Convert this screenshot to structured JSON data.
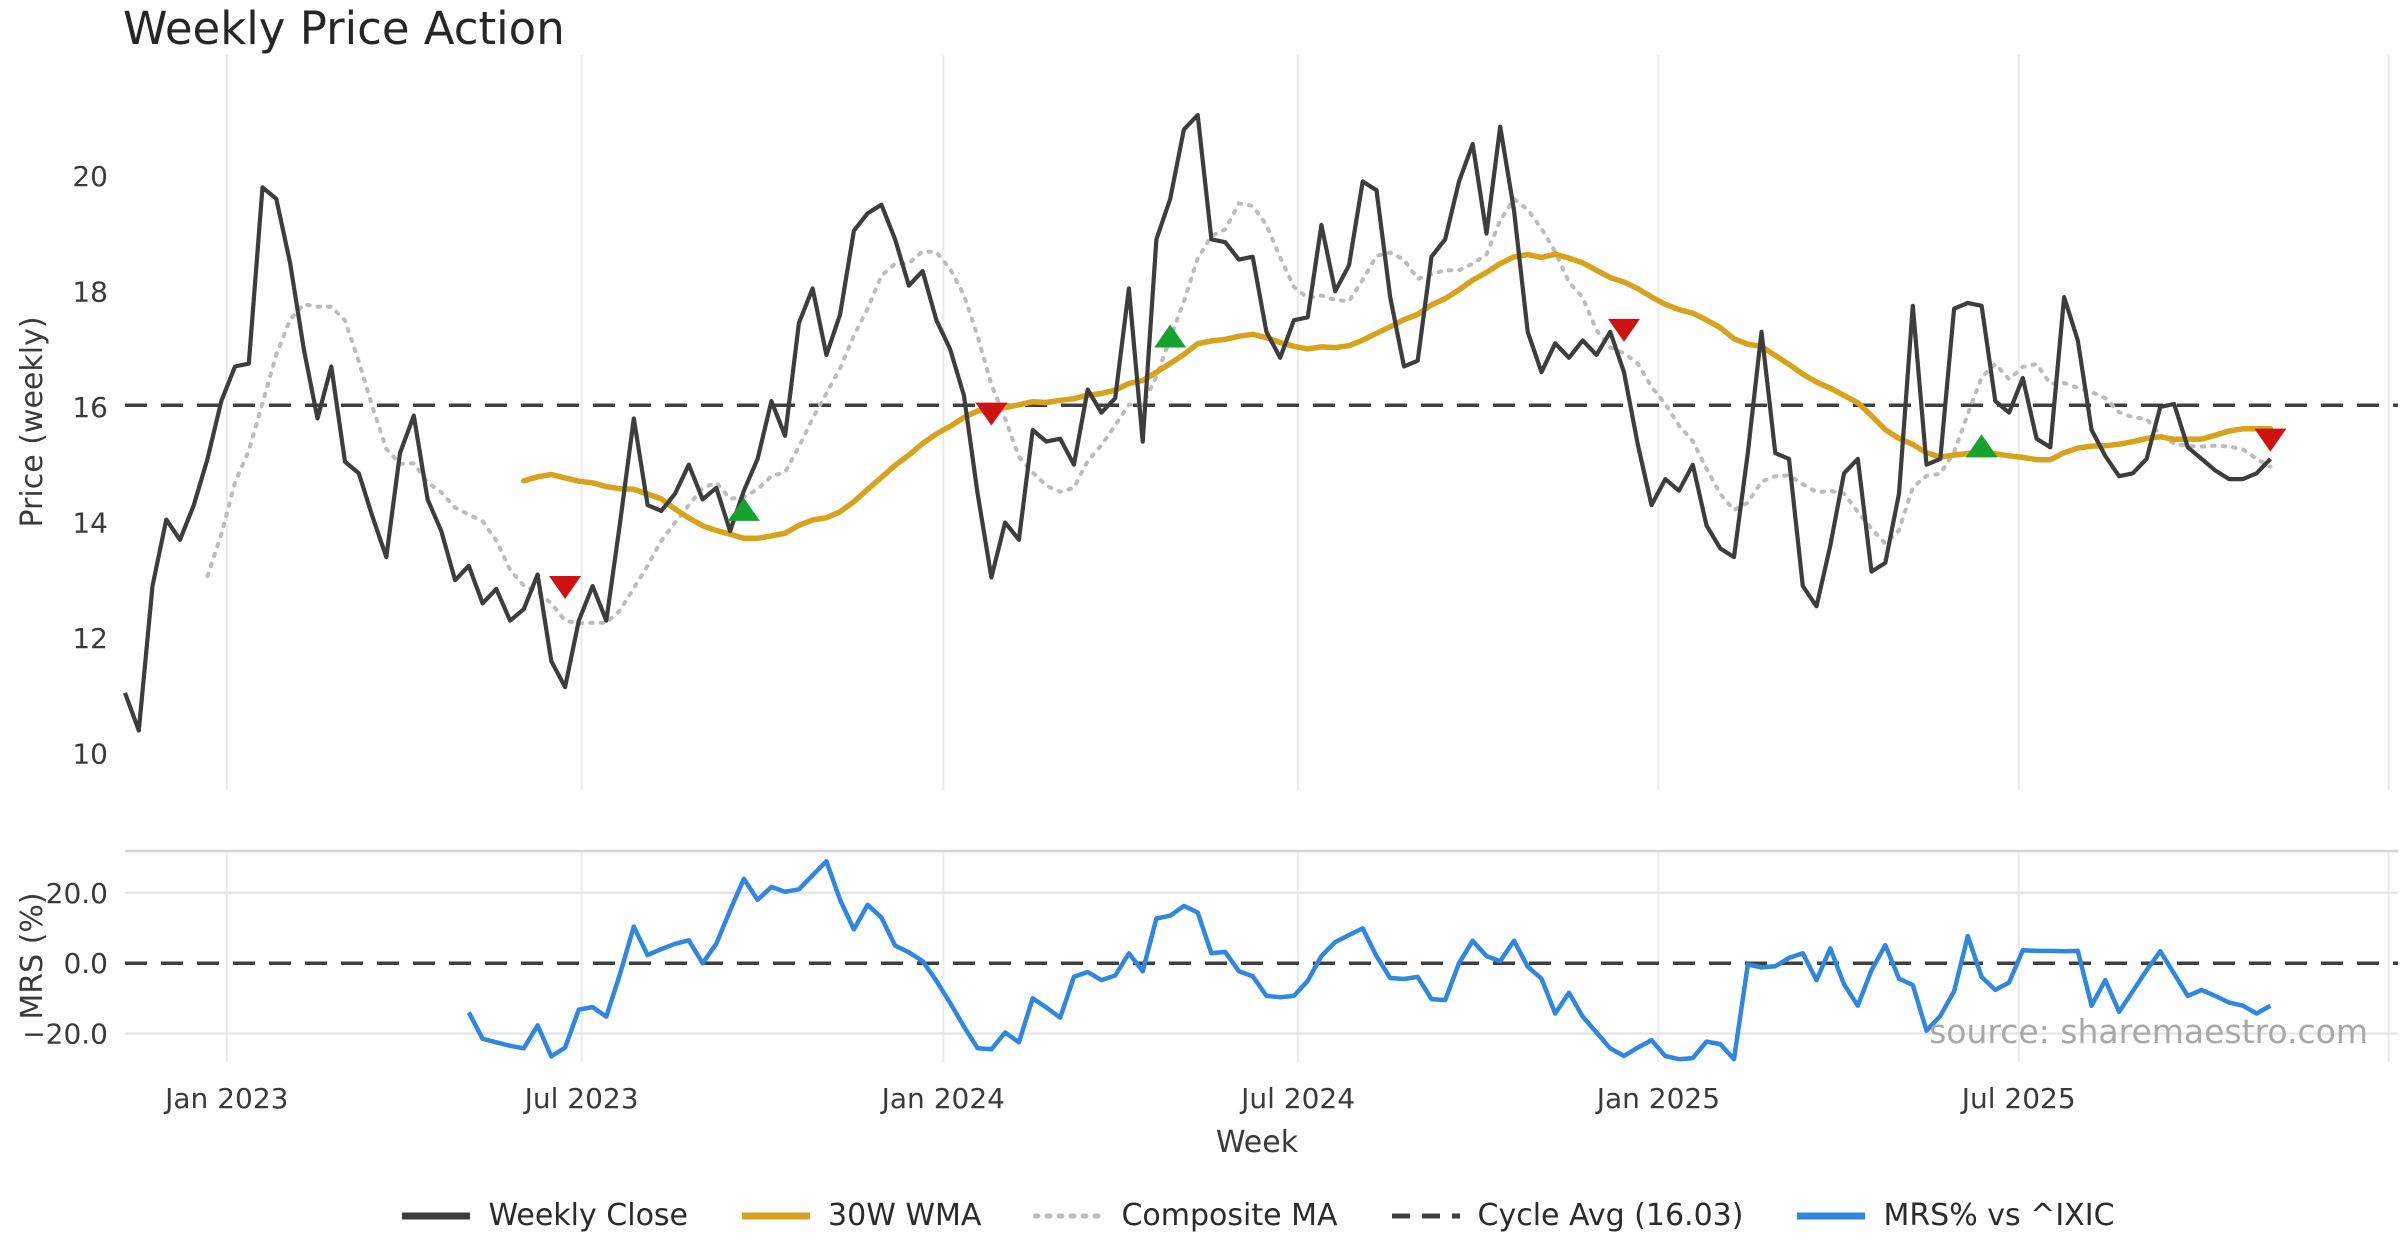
{
  "title": "Weekly Price Action",
  "source_note": "source: sharemaestro.com",
  "colors": {
    "close": "#3d3d3d",
    "wma": "#D7A31C",
    "composite": "#bcbcbc",
    "cycle": "#3f3f3f",
    "mrs": "#2F87E0",
    "buy": "#16A22C",
    "sell": "#CE1212",
    "grid": "#ebebef",
    "grid_strong": "#e2e2e6",
    "spine": "#d4d4d8"
  },
  "x_axis": {
    "label": "Week",
    "weeks_total": 164.7,
    "ticks": [
      {
        "week": 7.4,
        "label": "Jan 2023"
      },
      {
        "week": 33.2,
        "label": "Jul 2023"
      },
      {
        "week": 59.5,
        "label": "Jan 2024"
      },
      {
        "week": 85.3,
        "label": "Jul 2024"
      },
      {
        "week": 111.5,
        "label": "Jan 2025"
      },
      {
        "week": 137.7,
        "label": "Jul 2025"
      },
      {
        "week": 164.6,
        "label": ""
      }
    ]
  },
  "legend": [
    {
      "label": "Weekly Close",
      "style": "solid",
      "color": "#3d3d3d"
    },
    {
      "label": "30W WMA",
      "style": "solid",
      "color": "#D7A31C"
    },
    {
      "label": "Composite MA",
      "style": "dotted",
      "color": "#bcbcbc"
    },
    {
      "label": "Cycle Avg (16.03)",
      "style": "dashed",
      "color": "#3f3f3f"
    },
    {
      "label": "MRS% vs ^IXIC",
      "style": "solid",
      "color": "#2F87E0"
    }
  ],
  "chart_data": [
    {
      "type": "line",
      "panel": "price",
      "title": "Weekly Price Action",
      "xlabel": "Week",
      "ylabel": "Price (weekly)",
      "ylim": [
        9.37,
        22.09
      ],
      "yticks": [
        20,
        18,
        16,
        14,
        12,
        10
      ],
      "cycle_avg": 16.03,
      "grid": "vertical-only",
      "series": [
        {
          "name": "Weekly Close",
          "start_week": 0,
          "values": [
            11.05,
            10.4,
            12.9,
            14.05,
            13.7,
            14.3,
            15.1,
            16.1,
            16.7,
            16.75,
            19.8,
            19.6,
            18.5,
            17.0,
            15.8,
            16.7,
            15.05,
            14.85,
            14.1,
            13.4,
            15.2,
            15.85,
            14.4,
            13.85,
            13.0,
            13.25,
            12.6,
            12.85,
            12.3,
            12.5,
            13.1,
            11.6,
            11.15,
            12.3,
            12.9,
            12.3,
            14.0,
            15.8,
            14.3,
            14.2,
            14.5,
            15.0,
            14.4,
            14.6,
            13.85,
            14.55,
            15.1,
            16.1,
            15.5,
            17.45,
            18.05,
            16.9,
            17.6,
            19.05,
            19.35,
            19.5,
            18.9,
            18.1,
            18.35,
            17.5,
            17.0,
            16.2,
            14.5,
            13.05,
            14.0,
            13.7,
            15.6,
            15.4,
            15.45,
            15.0,
            16.3,
            15.9,
            16.15,
            18.05,
            15.4,
            18.9,
            19.6,
            20.8,
            21.05,
            18.9,
            18.85,
            18.55,
            18.6,
            17.3,
            16.85,
            17.5,
            17.55,
            19.15,
            18.0,
            18.45,
            19.9,
            19.75,
            17.9,
            16.7,
            16.8,
            18.6,
            18.9,
            19.9,
            20.55,
            19.0,
            20.85,
            19.4,
            17.3,
            16.6,
            17.1,
            16.85,
            17.15,
            16.9,
            17.3,
            16.6,
            15.35,
            14.3,
            14.75,
            14.55,
            15.0,
            13.95,
            13.55,
            13.4,
            15.2,
            17.3,
            15.2,
            15.1,
            12.9,
            12.55,
            13.6,
            14.85,
            15.1,
            13.15,
            13.3,
            14.5,
            17.75,
            15.0,
            15.1,
            17.7,
            17.8,
            17.75,
            16.1,
            15.9,
            16.5,
            15.45,
            15.3,
            17.9,
            17.15,
            15.6,
            15.15,
            14.8,
            14.85,
            15.1,
            16.0,
            16.05,
            15.3,
            15.1,
            14.9,
            14.75,
            14.75,
            14.85,
            15.1
          ]
        },
        {
          "name": "30W WMA",
          "derived_from": "Weekly Close",
          "method": "moving-average",
          "window": 30
        },
        {
          "name": "Composite MA",
          "derived_from": "Weekly Close",
          "method": "moving-average",
          "window": 7
        },
        {
          "name": "Cycle Avg",
          "constant": 16.03
        }
      ],
      "markers": {
        "buy": [
          {
            "week": 45,
            "value": 14.2
          },
          {
            "week": 76,
            "value": 17.2
          },
          {
            "week": 135,
            "value": 15.3
          }
        ],
        "sell": [
          {
            "week": 32,
            "value": 12.9
          },
          {
            "week": 63,
            "value": 15.9
          },
          {
            "week": 109,
            "value": 17.35
          },
          {
            "week": 156,
            "value": 15.45
          }
        ]
      }
    },
    {
      "type": "line",
      "panel": "mrs",
      "ylabel": "MRS (%)",
      "ylim": [
        -28.1,
        31.9
      ],
      "yticks": [
        {
          "value": 20,
          "label": "20.0"
        },
        {
          "value": 0,
          "label": "0.0"
        },
        {
          "value": -20,
          "label": "−20.0"
        }
      ],
      "zero_line": 0,
      "grid": "both-light",
      "series": [
        {
          "name": "MRS% vs ^IXIC",
          "start_week": 25,
          "values": [
            -14.0,
            -21.5,
            -22.5,
            -23.5,
            -24.2,
            -17.7,
            -26.5,
            -24.0,
            -13.2,
            -12.5,
            -15.2,
            -3.0,
            10.4,
            2.3,
            4.0,
            5.5,
            6.5,
            0.0,
            5.5,
            15.0,
            24.0,
            18.0,
            21.7,
            20.3,
            21.0,
            25.0,
            29.0,
            18.0,
            9.6,
            16.6,
            13.0,
            5.0,
            3.1,
            0.6,
            -5.0,
            -11.3,
            -18.0,
            -24.2,
            -24.5,
            -19.7,
            -22.5,
            -10.0,
            -12.6,
            -15.5,
            -3.9,
            -2.5,
            -4.8,
            -3.5,
            2.8,
            -2.3,
            12.7,
            13.5,
            16.3,
            14.4,
            2.8,
            3.2,
            -2.3,
            -3.7,
            -9.3,
            -9.7,
            -9.3,
            -5.0,
            2.0,
            6.0,
            8.0,
            9.9,
            2.0,
            -4.2,
            -4.5,
            -3.9,
            -10.2,
            -10.5,
            0.0,
            6.4,
            2.0,
            0.6,
            6.4,
            -1.0,
            -4.4,
            -14.3,
            -8.4,
            -15.2,
            -19.7,
            -24.2,
            -26.4,
            -24.0,
            -21.9,
            -26.4,
            -27.3,
            -27.0,
            -22.3,
            -23.0,
            -27.3,
            -0.4,
            -1.2,
            -0.9,
            1.5,
            2.8,
            -4.8,
            4.2,
            -6.0,
            -12.1,
            -2.0,
            5.1,
            -4.4,
            -6.2,
            -19.2,
            -15.0,
            -8.0,
            7.7,
            -3.9,
            -7.6,
            -5.5,
            3.7,
            3.5,
            3.5,
            3.4,
            3.5,
            -12.1,
            -4.8,
            -13.8,
            -8.0,
            -2.0,
            3.4,
            -3.0,
            -9.3,
            -7.6,
            -9.3,
            -11.2,
            -12.1,
            -14.3,
            -12.1
          ]
        }
      ]
    }
  ]
}
